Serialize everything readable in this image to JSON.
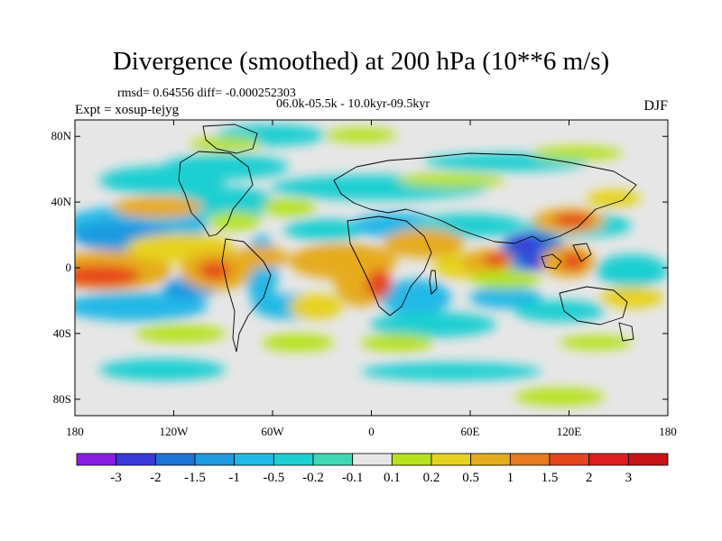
{
  "title": "Divergence (smoothed) at 200 hPa (10**6 m/s)",
  "stats_line": "rmsd= 0.64556 diff= -0.000252303",
  "period_line": "06.0k-05.5k - 10.0kyr-09.5kyr",
  "experiment_line": "Expt = xosup-tejyg",
  "season": "DJF",
  "map": {
    "lon_range": [
      -180,
      180
    ],
    "lat_range": [
      -90,
      90
    ],
    "lat_ticks": [
      {
        "value": 80,
        "label": "80N"
      },
      {
        "value": 40,
        "label": "40N"
      },
      {
        "value": 0,
        "label": "0"
      },
      {
        "value": -40,
        "label": "40S"
      },
      {
        "value": -80,
        "label": "80S"
      }
    ],
    "lon_ticks": [
      {
        "value": -180,
        "label": "180"
      },
      {
        "value": -120,
        "label": "120W"
      },
      {
        "value": -60,
        "label": "60W"
      },
      {
        "value": 0,
        "label": "0"
      },
      {
        "value": 60,
        "label": "60E"
      },
      {
        "value": 120,
        "label": "120E"
      },
      {
        "value": 180,
        "label": "180"
      }
    ]
  },
  "colorbar": {
    "levels": [
      "-3",
      "-2",
      "-1.5",
      "-1",
      "-0.5",
      "-0.2",
      "-0.1",
      "0.1",
      "0.2",
      "0.5",
      "1",
      "1.5",
      "2",
      "3"
    ],
    "colors": [
      "#8a1ee0",
      "#3a3ad8",
      "#1e74d4",
      "#1e9ae0",
      "#22b8e6",
      "#1ecfd2",
      "#3fd8b4",
      "#e6e6e6",
      "#b6e21e",
      "#e6d21e",
      "#e6aa1e",
      "#e67a1e",
      "#e6461e",
      "#dc1e1e",
      "#c81414"
    ]
  }
}
